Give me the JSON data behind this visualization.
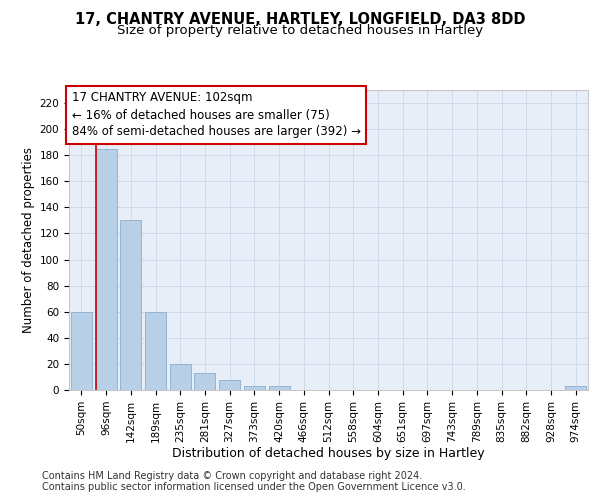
{
  "title1": "17, CHANTRY AVENUE, HARTLEY, LONGFIELD, DA3 8DD",
  "title2": "Size of property relative to detached houses in Hartley",
  "xlabel": "Distribution of detached houses by size in Hartley",
  "ylabel": "Number of detached properties",
  "bar_labels": [
    "50sqm",
    "96sqm",
    "142sqm",
    "189sqm",
    "235sqm",
    "281sqm",
    "327sqm",
    "373sqm",
    "420sqm",
    "466sqm",
    "512sqm",
    "558sqm",
    "604sqm",
    "651sqm",
    "697sqm",
    "743sqm",
    "789sqm",
    "835sqm",
    "882sqm",
    "928sqm",
    "974sqm"
  ],
  "bar_values": [
    60,
    185,
    130,
    60,
    20,
    13,
    8,
    3,
    3,
    0,
    0,
    0,
    0,
    0,
    0,
    0,
    0,
    0,
    0,
    0,
    3
  ],
  "bar_color": "#b8cfe8",
  "bar_edge_color": "#8aafd0",
  "grid_color": "#d0d8ec",
  "bg_color": "#e8eef8",
  "annotation_text": "17 CHANTRY AVENUE: 102sqm\n← 16% of detached houses are smaller (75)\n84% of semi-detached houses are larger (392) →",
  "annotation_box_color": "#ffffff",
  "annotation_box_edge": "#cc0000",
  "vline_color": "#cc0000",
  "ylim": [
    0,
    230
  ],
  "yticks": [
    0,
    20,
    40,
    60,
    80,
    100,
    120,
    140,
    160,
    180,
    200,
    220
  ],
  "footer": "Contains HM Land Registry data © Crown copyright and database right 2024.\nContains public sector information licensed under the Open Government Licence v3.0.",
  "title1_fontsize": 10.5,
  "title2_fontsize": 9.5,
  "xlabel_fontsize": 9,
  "ylabel_fontsize": 8.5,
  "tick_fontsize": 7.5,
  "annotation_fontsize": 8.5,
  "footer_fontsize": 7
}
